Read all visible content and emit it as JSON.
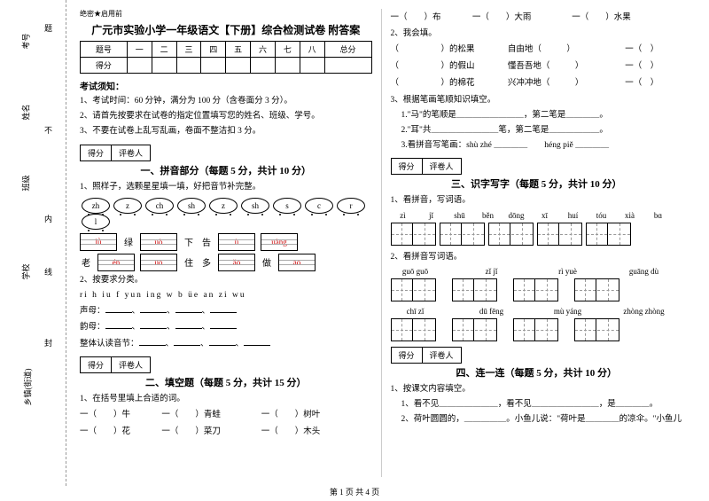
{
  "margin": {
    "l1": "考号",
    "l2": "姓名",
    "l3": "班级",
    "l4": "学校",
    "l5": "乡镇(街道)",
    "d1": "密",
    "d2": "封",
    "d3": "内",
    "d4": "不",
    "d5": "线",
    "d6": "答",
    "d7": "题"
  },
  "stamp": "绝密★启用前",
  "title": "广元市实验小学一年级语文【下册】综合检测试卷 附答案",
  "score_header": [
    "题号",
    "一",
    "二",
    "三",
    "四",
    "五",
    "六",
    "七",
    "八",
    "总分"
  ],
  "score_row": "得分",
  "instructions_h": "考试须知：",
  "inst1": "1、考试时间：60 分钟，满分为 100 分（含卷面分 3 分）。",
  "inst2": "2、请首先按要求在试卷的指定位置填写您的姓名、班级、学号。",
  "inst3": "3、不要在试卷上乱写乱画，卷面不整洁扣 3 分。",
  "scorer": {
    "a": "得分",
    "b": "评卷人"
  },
  "s1_title": "一、拼音部分（每题 5 分，共计 10 分）",
  "s1_q1": "1、照样子，选颗星星填一填，好把音节补完整。",
  "stars": [
    "zh",
    "z",
    "ch",
    "sh",
    "z",
    "sh",
    "s",
    "c",
    "r",
    "l"
  ],
  "pr1": {
    "c1": "lǜ",
    "t1": "绿",
    "c2": "uò",
    "t2": "下",
    "c3": "告",
    "c4": "ù",
    "c5": "uàng"
  },
  "pr2": {
    "t1": "老",
    "c1": "én",
    "c2": "uō",
    "t2": "住",
    "t3": "多",
    "c3": "ǎo",
    "t4": "做",
    "c4": "āo"
  },
  "s1_q2": "2、按要求分类。",
  "s1_q2_letters": "ri  h  iu  f  yun  ing  w  b  üe  an  zi  wu",
  "s1_q2_a": "声母：",
  "s1_q2_b": "韵母：",
  "s1_q2_c": "整体认读音节：",
  "s2_title": "二、填空题（每题 5 分，共计 15 分）",
  "s2_q1": "1、在括号里填上合适的词。",
  "s2_r1": {
    "a": "一（　　）牛",
    "b": "一（　　）青蛙",
    "c": "一（　　）树叶"
  },
  "s2_r2": {
    "a": "一（　　）花",
    "b": "一（　　）菜刀",
    "c": "一（　　）木头"
  },
  "s2_r3": {
    "a": "一（　　）布",
    "b": "一（　　）大雨",
    "c": "一（　　）水果"
  },
  "s2_q2": "2、我会填。",
  "s2_q2_r1": {
    "a": "（　　　　　）的松果",
    "b": "自由地（　　　）",
    "c": "一（　）"
  },
  "s2_q2_r2": {
    "a": "（　　　　　）的假山",
    "b": "懂吾吾地（　　　）",
    "c": "一（　）"
  },
  "s2_q2_r3": {
    "a": "（　　　　　）的棉花",
    "b": "兴冲冲地（　　　）",
    "c": "一（　）"
  },
  "s2_q3": "3、根据笔画笔顺知识填空。",
  "s2_q3_1": "1.\"马\"的笔顺是＿＿＿＿＿＿＿＿，第二笔是＿＿＿＿。",
  "s2_q3_2": "2.\"耳\"共＿＿＿＿＿＿＿＿笔，第二笔是＿＿＿＿＿＿。",
  "s2_q3_3": "3.看拼音写笔画：shù zhé ＿＿＿＿　　héng piě ＿＿＿＿",
  "s3_title": "三、识字写字（每题 5 分，共计 10 分）",
  "s3_q1": "1、看拼音，写词语。",
  "s3_py1": [
    "zì",
    "jǐ",
    "shū",
    "běn",
    "dōng",
    "xī",
    "huí",
    "tóu",
    "xià",
    "bɑ"
  ],
  "s3_q2": "2、看拼音写词语。",
  "s3_py2a": [
    "guō guō",
    "zǐ jǐ",
    "rì yuè",
    "guāng dù"
  ],
  "s3_py2b": [
    "chī zǐ",
    "dū fēng",
    "mù yáng",
    "zhòng zhòng"
  ],
  "s4_title": "四、连一连（每题 5 分，共计 10 分）",
  "s4_q1": "1、按课文内容填空。",
  "s4_q1_1": "1、看不见＿＿＿＿＿＿＿，看不见＿＿＿＿＿＿＿＿，是＿＿＿＿。",
  "s4_q1_2": "2、荷叶圆圆的，＿＿＿＿＿。小鱼儿说：\"荷叶是＿＿＿＿的凉伞。\"小鱼儿",
  "footer": "第 1 页 共 4 页"
}
